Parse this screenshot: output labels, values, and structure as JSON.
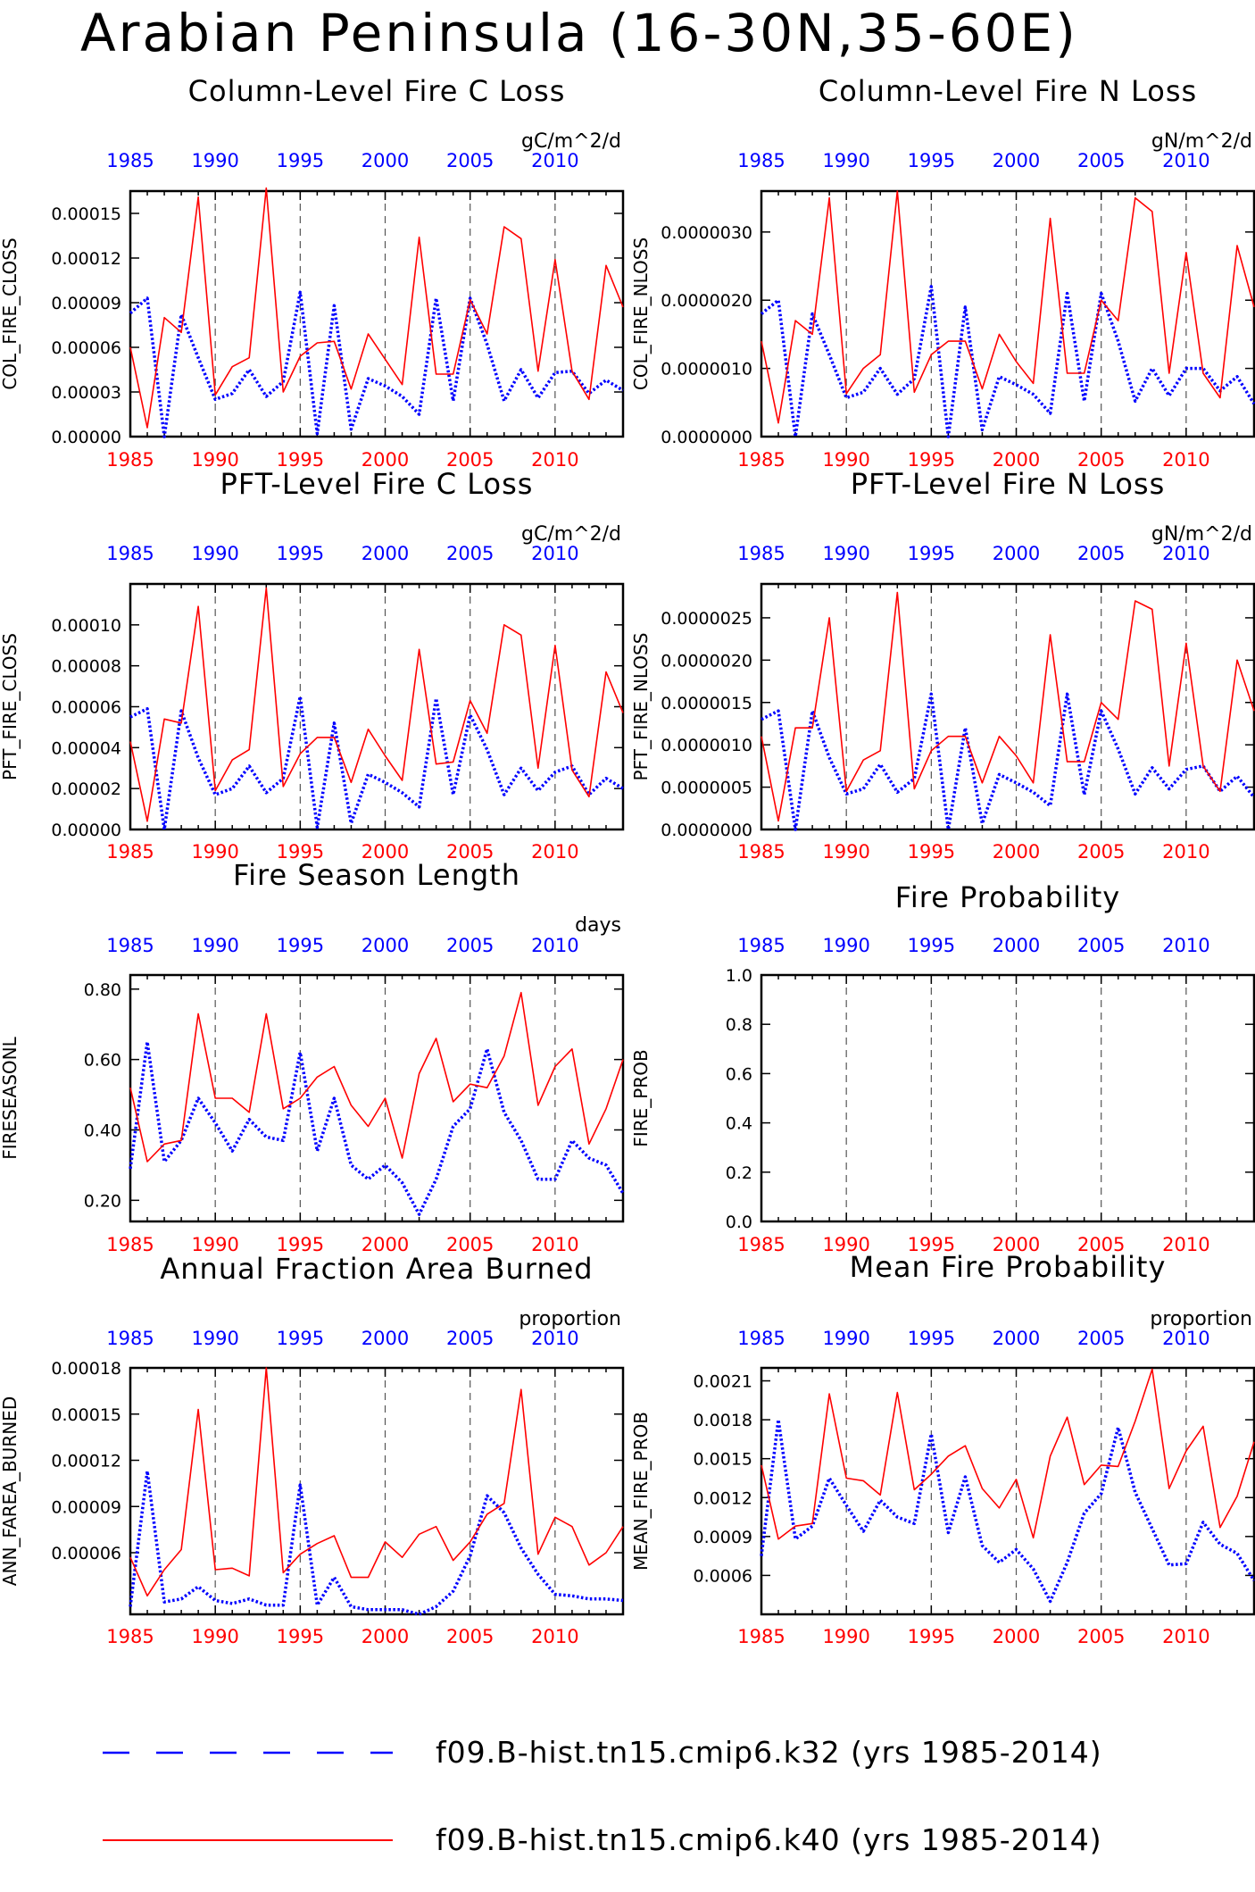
{
  "title": "Arabian Peninsula (16-30N,35-60E)",
  "colors": {
    "k32": "#0000ff",
    "k40": "#ff0000",
    "axis": "#000000",
    "grid": "#555555"
  },
  "legend": [
    {
      "label": "f09.B-hist.tn15.cmip6.k32 (yrs 1985-2014)",
      "style": "dashed",
      "color": "#0000ff"
    },
    {
      "label": "f09.B-hist.tn15.cmip6.k40 (yrs 1985-2014)",
      "style": "solid",
      "color": "#ff0000"
    }
  ],
  "chart_data": [
    {
      "type": "line",
      "title": "Column-Level Fire C Loss",
      "units": "gC/m^2/d",
      "ylabel": "COL_FIRE_CLOSS",
      "x": [
        1985,
        1986,
        1987,
        1988,
        1989,
        1990,
        1991,
        1992,
        1993,
        1994,
        1995,
        1996,
        1997,
        1998,
        1999,
        2000,
        2001,
        2002,
        2003,
        2004,
        2005,
        2006,
        2007,
        2008,
        2009,
        2010,
        2011,
        2012,
        2013,
        2014
      ],
      "xlim": [
        1985,
        2014
      ],
      "xticks": [
        "1985",
        "1990",
        "1995",
        "2000",
        "2005",
        "2010"
      ],
      "ylim": [
        0,
        0.000165
      ],
      "yticks": [
        "0.00000",
        "0.00003",
        "0.00006",
        "0.00009",
        "0.00012",
        "0.00015"
      ],
      "series": [
        {
          "name": "f09.B-hist.tn15.cmip6.k32",
          "values": [
            8.3e-05,
            9.3e-05,
            0.0,
            8.2e-05,
            5.3e-05,
            2.5e-05,
            2.9e-05,
            4.5e-05,
            2.7e-05,
            3.7e-05,
            9.7e-05,
            2e-06,
            8.8e-05,
            5e-06,
            3.9e-05,
            3.4e-05,
            2.7e-05,
            1.5e-05,
            9.3e-05,
            2.4e-05,
            9.3e-05,
            6.2e-05,
            2.4e-05,
            4.5e-05,
            2.6e-05,
            4.3e-05,
            4.4e-05,
            2.9e-05,
            3.8e-05,
            3.1e-05
          ]
        },
        {
          "name": "f09.B-hist.tn15.cmip6.k40",
          "values": [
            6e-05,
            6e-06,
            8e-05,
            7e-05,
            0.000161,
            2.8e-05,
            4.7e-05,
            5.3e-05,
            0.000167,
            3e-05,
            5.4e-05,
            6.3e-05,
            6.4e-05,
            3.2e-05,
            6.9e-05,
            5.2e-05,
            3.5e-05,
            0.000134,
            4.2e-05,
            4.2e-05,
            9.2e-05,
            6.9e-05,
            0.000141,
            0.000133,
            4.4e-05,
            0.000119,
            4.4e-05,
            2.5e-05,
            0.000115,
            8.7e-05
          ]
        }
      ]
    },
    {
      "type": "line",
      "title": "Column-Level Fire N Loss",
      "units": "gN/m^2/d",
      "ylabel": "COL_FIRE_NLOSS",
      "x": [
        1985,
        1986,
        1987,
        1988,
        1989,
        1990,
        1991,
        1992,
        1993,
        1994,
        1995,
        1996,
        1997,
        1998,
        1999,
        2000,
        2001,
        2002,
        2003,
        2004,
        2005,
        2006,
        2007,
        2008,
        2009,
        2010,
        2011,
        2012,
        2013,
        2014
      ],
      "xlim": [
        1985,
        2014
      ],
      "xticks": [
        "1985",
        "1990",
        "1995",
        "2000",
        "2005",
        "2010"
      ],
      "ylim": [
        0,
        3.6e-06
      ],
      "yticks": [
        "0.0000000",
        "0.0000010",
        "0.0000020",
        "0.0000030"
      ],
      "series": [
        {
          "name": "f09.B-hist.tn15.cmip6.k32",
          "values": [
            1.8e-06,
            2e-06,
            0.0,
            1.8e-06,
            1.2e-06,
            5.7e-07,
            6.5e-07,
            1e-06,
            6.2e-07,
            8.5e-07,
            2.2e-06,
            0.0,
            1.9e-06,
            1e-07,
            8.8e-07,
            7.6e-07,
            6.2e-07,
            3.4e-07,
            2.1e-06,
            5.2e-07,
            2.1e-06,
            1.4e-06,
            5.2e-07,
            1e-06,
            6e-07,
            1e-06,
            1e-06,
            6.7e-07,
            8.8e-07,
            4.8e-07
          ]
        },
        {
          "name": "f09.B-hist.tn15.cmip6.k40",
          "values": [
            1.4e-06,
            2e-07,
            1.7e-06,
            1.5e-06,
            3.5e-06,
            6.3e-07,
            1e-06,
            1.2e-06,
            3.6e-06,
            6.5e-07,
            1.2e-06,
            1.4e-06,
            1.4e-06,
            7e-07,
            1.5e-06,
            1.1e-06,
            7.8e-07,
            3.2e-06,
            9.3e-07,
            9.3e-07,
            2e-06,
            1.7e-06,
            3.5e-06,
            3.3e-06,
            9.3e-07,
            2.7e-06,
            9.3e-07,
            5.7e-07,
            2.8e-06,
            1.9e-06
          ]
        }
      ]
    },
    {
      "type": "line",
      "title": "PFT-Level Fire C Loss",
      "units": "gC/m^2/d",
      "ylabel": "PFT_FIRE_CLOSS",
      "x": [
        1985,
        1986,
        1987,
        1988,
        1989,
        1990,
        1991,
        1992,
        1993,
        1994,
        1995,
        1996,
        1997,
        1998,
        1999,
        2000,
        2001,
        2002,
        2003,
        2004,
        2005,
        2006,
        2007,
        2008,
        2009,
        2010,
        2011,
        2012,
        2013,
        2014
      ],
      "xlim": [
        1985,
        2014
      ],
      "xticks": [
        "1985",
        "1990",
        "1995",
        "2000",
        "2005",
        "2010"
      ],
      "ylim": [
        0,
        0.00012
      ],
      "yticks": [
        "0.00000",
        "0.00002",
        "0.00004",
        "0.00006",
        "0.00008",
        "0.00010"
      ],
      "series": [
        {
          "name": "f09.B-hist.tn15.cmip6.k32",
          "values": [
            5.5e-05,
            5.9e-05,
            0.0,
            5.8e-05,
            3.5e-05,
            1.7e-05,
            2e-05,
            3.1e-05,
            1.8e-05,
            2.5e-05,
            6.5e-05,
            1e-06,
            5.2e-05,
            3e-06,
            2.7e-05,
            2.3e-05,
            1.8e-05,
            1.1e-05,
            6.4e-05,
            1.7e-05,
            5.6e-05,
            3.9e-05,
            1.7e-05,
            3e-05,
            1.9e-05,
            2.8e-05,
            3.1e-05,
            1.7e-05,
            2.5e-05,
            2e-05
          ]
        },
        {
          "name": "f09.B-hist.tn15.cmip6.k40",
          "values": [
            4.3e-05,
            4e-06,
            5.4e-05,
            5.2e-05,
            0.000109,
            1.9e-05,
            3.4e-05,
            3.9e-05,
            0.000118,
            2.1e-05,
            3.7e-05,
            4.5e-05,
            4.5e-05,
            2.3e-05,
            4.9e-05,
            3.6e-05,
            2.4e-05,
            8.8e-05,
            3.2e-05,
            3.3e-05,
            6.3e-05,
            4.7e-05,
            0.0001,
            9.5e-05,
            3e-05,
            9e-05,
            2.9e-05,
            1.6e-05,
            7.7e-05,
            5.7e-05
          ]
        }
      ]
    },
    {
      "type": "line",
      "title": "PFT-Level Fire N Loss",
      "units": "gN/m^2/d",
      "ylabel": "PFT_FIRE_NLOSS",
      "x": [
        1985,
        1986,
        1987,
        1988,
        1989,
        1990,
        1991,
        1992,
        1993,
        1994,
        1995,
        1996,
        1997,
        1998,
        1999,
        2000,
        2001,
        2002,
        2003,
        2004,
        2005,
        2006,
        2007,
        2008,
        2009,
        2010,
        2011,
        2012,
        2013,
        2014
      ],
      "xlim": [
        1985,
        2014
      ],
      "xticks": [
        "1985",
        "1990",
        "1995",
        "2000",
        "2005",
        "2010"
      ],
      "ylim": [
        0,
        2.9e-06
      ],
      "yticks": [
        "0.0000000",
        "0.0000005",
        "0.0000010",
        "0.0000015",
        "0.0000020",
        "0.0000025"
      ],
      "series": [
        {
          "name": "f09.B-hist.tn15.cmip6.k32",
          "values": [
            1.3e-06,
            1.4e-06,
            0.0,
            1.4e-06,
            8.5e-07,
            4.2e-07,
            4.8e-07,
            7.7e-07,
            4.4e-07,
            6e-07,
            1.6e-06,
            0.0,
            1.2e-06,
            7e-08,
            6.5e-07,
            5.5e-07,
            4.4e-07,
            2.8e-07,
            1.6e-06,
            4.1e-07,
            1.4e-06,
            9.5e-07,
            4.2e-07,
            7.3e-07,
            4.8e-07,
            7.1e-07,
            7.5e-07,
            4.5e-07,
            6.3e-07,
            3.8e-07
          ]
        },
        {
          "name": "f09.B-hist.tn15.cmip6.k40",
          "values": [
            1.1e-06,
            1e-07,
            1.2e-06,
            1.2e-06,
            2.5e-06,
            4.5e-07,
            8.2e-07,
            9.3e-07,
            2.8e-06,
            4.8e-07,
            9.3e-07,
            1.1e-06,
            1.1e-06,
            5.5e-07,
            1.1e-06,
            8.7e-07,
            5.5e-07,
            2.3e-06,
            8e-07,
            8e-07,
            1.5e-06,
            1.3e-06,
            2.7e-06,
            2.6e-06,
            7.5e-07,
            2.2e-06,
            7.5e-07,
            4.5e-07,
            2e-06,
            1.4e-06
          ]
        }
      ]
    },
    {
      "type": "line",
      "title": "Fire Season Length",
      "units": "days",
      "ylabel": "FIRESEASONL",
      "x": [
        1985,
        1986,
        1987,
        1988,
        1989,
        1990,
        1991,
        1992,
        1993,
        1994,
        1995,
        1996,
        1997,
        1998,
        1999,
        2000,
        2001,
        2002,
        2003,
        2004,
        2005,
        2006,
        2007,
        2008,
        2009,
        2010,
        2011,
        2012,
        2013,
        2014
      ],
      "xlim": [
        1985,
        2014
      ],
      "xticks": [
        "1985",
        "1990",
        "1995",
        "2000",
        "2005",
        "2010"
      ],
      "ylim": [
        0.14,
        0.84
      ],
      "yticks": [
        "0.20",
        "0.40",
        "0.60",
        "0.80"
      ],
      "series": [
        {
          "name": "f09.B-hist.tn15.cmip6.k32",
          "values": [
            0.29,
            0.65,
            0.31,
            0.37,
            0.49,
            0.42,
            0.34,
            0.43,
            0.38,
            0.37,
            0.62,
            0.34,
            0.49,
            0.3,
            0.26,
            0.3,
            0.25,
            0.16,
            0.26,
            0.41,
            0.46,
            0.63,
            0.45,
            0.37,
            0.26,
            0.26,
            0.37,
            0.32,
            0.3,
            0.22
          ]
        },
        {
          "name": "f09.B-hist.tn15.cmip6.k40",
          "values": [
            0.52,
            0.31,
            0.36,
            0.37,
            0.73,
            0.49,
            0.49,
            0.45,
            0.73,
            0.46,
            0.49,
            0.55,
            0.58,
            0.47,
            0.41,
            0.49,
            0.32,
            0.56,
            0.66,
            0.48,
            0.53,
            0.52,
            0.61,
            0.79,
            0.47,
            0.58,
            0.63,
            0.36,
            0.46,
            0.6
          ]
        }
      ]
    },
    {
      "type": "line",
      "title": "Fire Probability",
      "units": "",
      "ylabel": "FIRE_PROB",
      "x": [],
      "xlim": [
        1985,
        2014
      ],
      "xticks": [
        "1985",
        "1990",
        "1995",
        "2000",
        "2005",
        "2010"
      ],
      "ylim": [
        0,
        1
      ],
      "yticks": [
        "0.0",
        "0.2",
        "0.4",
        "0.6",
        "0.8",
        "1.0"
      ],
      "series": []
    },
    {
      "type": "line",
      "title": "Annual Fraction Area Burned",
      "units": "proportion",
      "ylabel": "ANN_FAREA_BURNED",
      "x": [
        1985,
        1986,
        1987,
        1988,
        1989,
        1990,
        1991,
        1992,
        1993,
        1994,
        1995,
        1996,
        1997,
        1998,
        1999,
        2000,
        2001,
        2002,
        2003,
        2004,
        2005,
        2006,
        2007,
        2008,
        2009,
        2010,
        2011,
        2012,
        2013,
        2014
      ],
      "xlim": [
        1985,
        2014
      ],
      "xticks": [
        "1985",
        "1990",
        "1995",
        "2000",
        "2005",
        "2010"
      ],
      "ylim": [
        2e-05,
        0.00018
      ],
      "yticks": [
        "0.00006",
        "0.00009",
        "0.00012",
        "0.00015",
        "0.00018"
      ],
      "series": [
        {
          "name": "f09.B-hist.tn15.cmip6.k32",
          "values": [
            2.5e-05,
            0.000113,
            2.8e-05,
            3e-05,
            3.8e-05,
            2.9e-05,
            2.7e-05,
            3e-05,
            2.6e-05,
            2.6e-05,
            0.000104,
            2.6e-05,
            4.4e-05,
            2.5e-05,
            2.3e-05,
            2.3e-05,
            2.3e-05,
            2e-05,
            2.5e-05,
            3.5e-05,
            5.8e-05,
            9.7e-05,
            8.6e-05,
            6.3e-05,
            4.6e-05,
            3.3e-05,
            3.2e-05,
            3e-05,
            3e-05,
            2.9e-05
          ]
        },
        {
          "name": "f09.B-hist.tn15.cmip6.k40",
          "values": [
            5.7e-05,
            3.2e-05,
            4.9e-05,
            6.2e-05,
            0.000153,
            4.9e-05,
            5e-05,
            4.5e-05,
            0.00018,
            4.7e-05,
            5.9e-05,
            6.6e-05,
            7.1e-05,
            4.4e-05,
            4.4e-05,
            6.7e-05,
            5.7e-05,
            7.2e-05,
            7.7e-05,
            5.5e-05,
            6.7e-05,
            8.5e-05,
            9.2e-05,
            0.000166,
            5.9e-05,
            8.3e-05,
            7.7e-05,
            5.2e-05,
            6e-05,
            7.7e-05
          ]
        }
      ]
    },
    {
      "type": "line",
      "title": "Mean Fire Probability",
      "units": "proportion",
      "ylabel": "MEAN_FIRE_PROB",
      "x": [
        1985,
        1986,
        1987,
        1988,
        1989,
        1990,
        1991,
        1992,
        1993,
        1994,
        1995,
        1996,
        1997,
        1998,
        1999,
        2000,
        2001,
        2002,
        2003,
        2004,
        2005,
        2006,
        2007,
        2008,
        2009,
        2010,
        2011,
        2012,
        2013,
        2014
      ],
      "xlim": [
        1985,
        2014
      ],
      "xticks": [
        "1985",
        "1990",
        "1995",
        "2000",
        "2005",
        "2010"
      ],
      "ylim": [
        0.0003,
        0.0022
      ],
      "yticks": [
        "0.0006",
        "0.0009",
        "0.0012",
        "0.0015",
        "0.0018",
        "0.0021"
      ],
      "series": [
        {
          "name": "f09.B-hist.tn15.cmip6.k32",
          "values": [
            0.00075,
            0.0018,
            0.00088,
            0.00098,
            0.00135,
            0.00114,
            0.00094,
            0.00118,
            0.00105,
            0.001,
            0.00169,
            0.00093,
            0.00136,
            0.00083,
            0.0007,
            0.0008,
            0.00065,
            0.0004,
            0.0007,
            0.00108,
            0.00123,
            0.00174,
            0.00124,
            0.00096,
            0.00068,
            0.00069,
            0.00101,
            0.00084,
            0.00077,
            0.00056
          ]
        },
        {
          "name": "f09.B-hist.tn15.cmip6.k40",
          "values": [
            0.00145,
            0.00088,
            0.00098,
            0.001,
            0.002,
            0.00135,
            0.00133,
            0.00122,
            0.00201,
            0.00126,
            0.00138,
            0.00152,
            0.0016,
            0.00127,
            0.00112,
            0.00134,
            0.00089,
            0.00152,
            0.00182,
            0.0013,
            0.00145,
            0.00144,
            0.00179,
            0.00219,
            0.00127,
            0.00156,
            0.00175,
            0.00097,
            0.00121,
            0.00163
          ]
        }
      ]
    }
  ]
}
